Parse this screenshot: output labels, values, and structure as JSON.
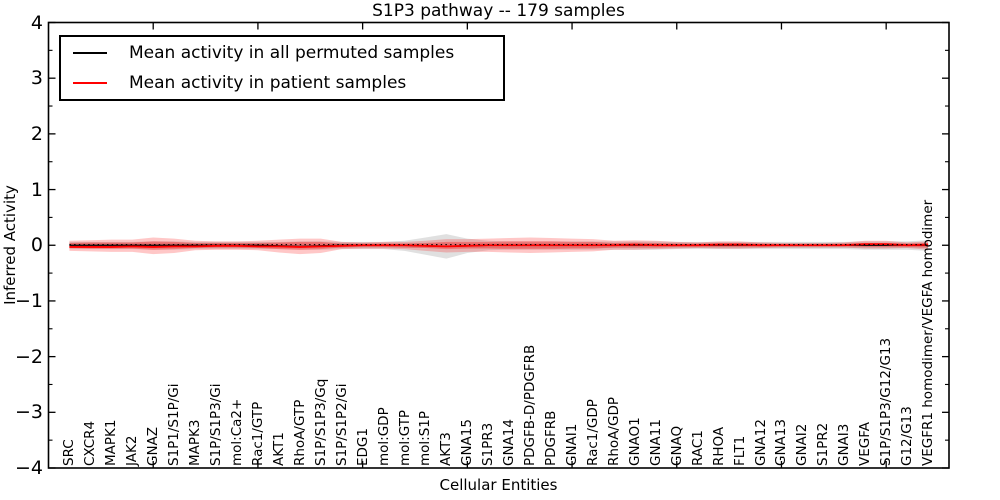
{
  "title": "S1P3 pathway -- 179 samples",
  "axes": {
    "xlabel": "Cellular Entities",
    "ylabel": "Inferred Activity",
    "ylim": [
      -4,
      4
    ],
    "ytick_step": 1,
    "ytick_minor_step": 0.5,
    "xlim": [
      0,
      43
    ],
    "xticks_major": [
      5,
      10,
      15,
      20,
      25,
      30,
      35,
      40
    ]
  },
  "legend": {
    "items": [
      {
        "label": "Mean activity in all permuted samples",
        "color": "#000000"
      },
      {
        "label": "Mean activity in patient samples",
        "color": "#ff0000"
      }
    ]
  },
  "chart_data": {
    "type": "line",
    "title": "S1P3 pathway -- 179 samples",
    "xlabel": "Cellular Entities",
    "ylabel": "Inferred Activity",
    "ylim": [
      -4,
      4
    ],
    "legend_position": "upper left",
    "categories": [
      "SRC",
      "CXCR4",
      "MAPK1",
      "JAK2",
      "GNAZ",
      "S1P1/S1P/Gi",
      "MAPK3",
      "S1P/S1P3/Gi",
      "mol:Ca2+",
      "Rac1/GTP",
      "AKT1",
      "RhoA/GTP",
      "S1P/S1P3/Gq",
      "S1P/S1P2/Gi",
      "EDG1",
      "mol:GDP",
      "mol:GTP",
      "mol:S1P",
      "AKT3",
      "GNA15",
      "S1PR3",
      "GNA14",
      "PDGFB-D/PDGFRB",
      "PDGFRB",
      "GNAI1",
      "Rac1/GDP",
      "RhoA/GDP",
      "GNAO1",
      "GNA11",
      "GNAQ",
      "RAC1",
      "RHOA",
      "FLT1",
      "GNA12",
      "GNA13",
      "GNAI2",
      "S1PR2",
      "GNAI3",
      "VEGFA",
      "S1P/S1P3/G12/G13",
      "G12/G13",
      "VEGFR1 homodimer/VEGFA homodimer"
    ],
    "series": [
      {
        "name": "Mean activity in all permuted samples",
        "color": "#000000",
        "width": 1.3,
        "values": [
          0,
          0,
          0,
          0,
          0,
          0,
          0,
          0,
          0,
          0,
          -0.01,
          -0.02,
          -0.01,
          0,
          0,
          0,
          0,
          -0.01,
          -0.02,
          -0.01,
          0,
          0,
          0,
          0,
          0,
          0,
          0,
          0,
          0,
          0,
          0,
          0,
          0,
          0,
          0,
          0,
          0,
          0,
          0,
          0,
          0,
          0
        ]
      },
      {
        "name": "Mean activity in patient samples",
        "color": "#ff0000",
        "width": 1.8,
        "values": [
          -0.03,
          -0.03,
          -0.03,
          -0.02,
          -0.03,
          -0.02,
          -0.02,
          -0.01,
          -0.01,
          -0.02,
          -0.02,
          -0.03,
          -0.02,
          -0.01,
          0,
          0,
          0,
          -0.01,
          -0.02,
          -0.01,
          0,
          0,
          0,
          0,
          0,
          0,
          0,
          0.01,
          0,
          0,
          0,
          0.01,
          0.01,
          0,
          0,
          0,
          0,
          0,
          0.02,
          0.02,
          0,
          0.01
        ]
      }
    ],
    "bands": [
      {
        "name": "permuted-spread-inner",
        "color": "#999999",
        "opacity": 0.25,
        "upper": [
          0.045,
          0.045,
          0.045,
          0.045,
          0.045,
          0.045,
          0.045,
          0.045,
          0.045,
          0.045,
          0.045,
          0.045,
          0.045,
          0.045,
          0.045,
          0.045,
          0.045,
          0.045,
          0.045,
          0.045,
          0.045,
          0.045,
          0.045,
          0.045,
          0.045,
          0.045,
          0.045,
          0.045,
          0.045,
          0.045,
          0.045,
          0.045,
          0.045,
          0.045,
          0.045,
          0.045,
          0.045,
          0.045,
          0.045,
          0.045,
          0.045,
          0.045
        ],
        "lower": [
          -0.05,
          -0.05,
          -0.05,
          -0.05,
          -0.05,
          -0.05,
          -0.05,
          -0.05,
          -0.05,
          -0.05,
          -0.05,
          -0.05,
          -0.05,
          -0.05,
          -0.05,
          -0.05,
          -0.05,
          -0.05,
          -0.05,
          -0.05,
          -0.05,
          -0.05,
          -0.05,
          -0.05,
          -0.05,
          -0.05,
          -0.05,
          -0.05,
          -0.05,
          -0.05,
          -0.05,
          -0.05,
          -0.05,
          -0.05,
          -0.05,
          -0.05,
          -0.05,
          -0.05,
          -0.05,
          -0.05,
          -0.05,
          -0.05
        ]
      },
      {
        "name": "permuted-spread-outer",
        "color": "#999999",
        "opacity": 0.3,
        "upper": [
          0.06,
          0.06,
          0.06,
          0.06,
          0.07,
          0.07,
          0.06,
          0.06,
          0.06,
          0.06,
          0.06,
          0.07,
          0.07,
          0.06,
          0.06,
          0.06,
          0.08,
          0.14,
          0.2,
          0.12,
          0.08,
          0.07,
          0.07,
          0.07,
          0.07,
          0.07,
          0.07,
          0.07,
          0.07,
          0.06,
          0.06,
          0.06,
          0.06,
          0.06,
          0.06,
          0.06,
          0.06,
          0.06,
          0.07,
          0.07,
          0.07,
          0.09
        ],
        "lower": [
          -0.07,
          -0.07,
          -0.07,
          -0.07,
          -0.08,
          -0.08,
          -0.07,
          -0.07,
          -0.07,
          -0.07,
          -0.07,
          -0.08,
          -0.08,
          -0.07,
          -0.07,
          -0.07,
          -0.1,
          -0.17,
          -0.24,
          -0.14,
          -0.09,
          -0.08,
          -0.08,
          -0.08,
          -0.08,
          -0.08,
          -0.08,
          -0.08,
          -0.08,
          -0.07,
          -0.07,
          -0.07,
          -0.07,
          -0.07,
          -0.07,
          -0.07,
          -0.07,
          -0.07,
          -0.08,
          -0.08,
          -0.08,
          -0.1
        ]
      },
      {
        "name": "patient-spread-outer",
        "color": "#ff0000",
        "opacity": 0.22,
        "upper": [
          0.08,
          0.09,
          0.1,
          0.1,
          0.14,
          0.12,
          0.08,
          0.07,
          0.07,
          0.08,
          0.1,
          0.12,
          0.12,
          0.06,
          0.05,
          0.06,
          0.06,
          0.08,
          0.11,
          0.11,
          0.12,
          0.13,
          0.14,
          0.13,
          0.12,
          0.11,
          0.08,
          0.09,
          0.08,
          0.06,
          0.05,
          0.07,
          0.07,
          0.05,
          0.04,
          0.04,
          0.04,
          0.05,
          0.08,
          0.08,
          0.05,
          0.07
        ],
        "lower": [
          -0.1,
          -0.11,
          -0.12,
          -0.12,
          -0.16,
          -0.14,
          -0.09,
          -0.08,
          -0.08,
          -0.09,
          -0.13,
          -0.16,
          -0.14,
          -0.07,
          -0.06,
          -0.06,
          -0.07,
          -0.1,
          -0.13,
          -0.12,
          -0.12,
          -0.13,
          -0.14,
          -0.13,
          -0.12,
          -0.11,
          -0.08,
          -0.08,
          -0.07,
          -0.06,
          -0.05,
          -0.06,
          -0.06,
          -0.05,
          -0.04,
          -0.04,
          -0.04,
          -0.04,
          -0.06,
          -0.06,
          -0.05,
          -0.08
        ]
      },
      {
        "name": "patient-spread-inner",
        "color": "#ff0000",
        "opacity": 0.3,
        "upper": [
          0.04,
          0.05,
          0.05,
          0.05,
          0.07,
          0.06,
          0.04,
          0.04,
          0.04,
          0.04,
          0.05,
          0.06,
          0.06,
          0.03,
          0.03,
          0.03,
          0.03,
          0.04,
          0.06,
          0.06,
          0.06,
          0.07,
          0.07,
          0.07,
          0.06,
          0.06,
          0.04,
          0.05,
          0.04,
          0.03,
          0.03,
          0.04,
          0.04,
          0.03,
          0.02,
          0.02,
          0.02,
          0.03,
          0.04,
          0.04,
          0.03,
          0.04
        ],
        "lower": [
          -0.05,
          -0.06,
          -0.06,
          -0.06,
          -0.08,
          -0.07,
          -0.05,
          -0.04,
          -0.04,
          -0.05,
          -0.07,
          -0.08,
          -0.07,
          -0.04,
          -0.03,
          -0.03,
          -0.04,
          -0.05,
          -0.07,
          -0.06,
          -0.06,
          -0.07,
          -0.07,
          -0.07,
          -0.06,
          -0.06,
          -0.04,
          -0.04,
          -0.04,
          -0.03,
          -0.03,
          -0.03,
          -0.03,
          -0.03,
          -0.02,
          -0.02,
          -0.02,
          -0.02,
          -0.03,
          -0.03,
          -0.03,
          -0.04
        ]
      }
    ],
    "zero_reference": {
      "y": 0,
      "style": "dotted",
      "color": "#000000"
    }
  }
}
